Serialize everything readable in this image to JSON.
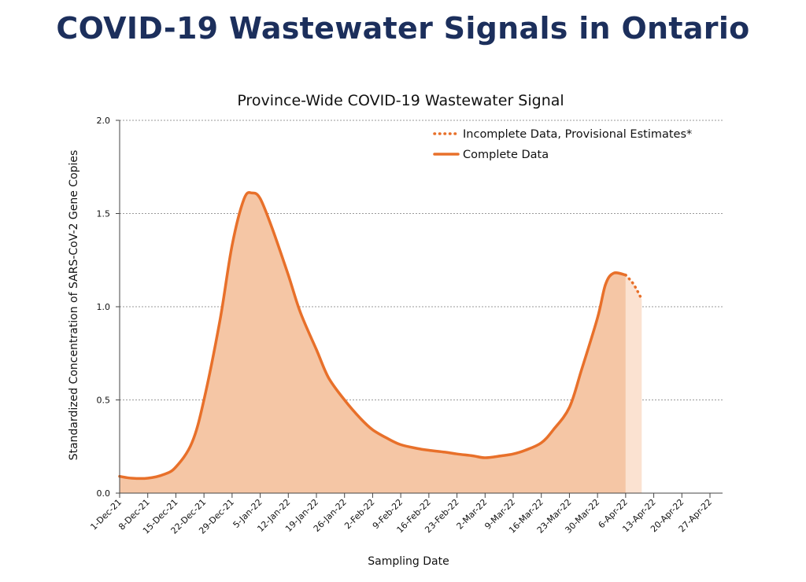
{
  "page_title": "COVID-19 Wastewater Signals in Ontario",
  "chart_data": {
    "type": "area",
    "title": "Province-Wide COVID-19 Wastewater Signal",
    "xlabel": "Sampling Date",
    "ylabel": "Standardized Concentration of SARS-CoV-2 Gene Copies",
    "ylim": [
      0,
      2.0
    ],
    "yticks": [
      "0.0",
      "0.5",
      "1.0",
      "1.5",
      "2.0"
    ],
    "xticks": [
      "1-Dec-21",
      "8-Dec-21",
      "15-Dec-21",
      "22-Dec-21",
      "29-Dec-21",
      "5-Jan-22",
      "12-Jan-22",
      "19-Jan-22",
      "26-Jan-22",
      "2-Feb-22",
      "9-Feb-22",
      "16-Feb-22",
      "23-Feb-22",
      "2-Mar-22",
      "9-Mar-22",
      "16-Mar-22",
      "23-Mar-22",
      "30-Mar-22",
      "6-Apr-22",
      "13-Apr-22",
      "20-Apr-22",
      "27-Apr-22"
    ],
    "grid": true,
    "legend_position": "top-right",
    "series": [
      {
        "name": "Complete Data",
        "style": "solid",
        "color": "#e8702a",
        "fill": "#f5c6a5",
        "x": [
          "1-Dec-21",
          "4-Dec-21",
          "8-Dec-21",
          "12-Dec-21",
          "15-Dec-21",
          "19-Dec-21",
          "22-Dec-21",
          "26-Dec-21",
          "29-Dec-21",
          "1-Jan-22",
          "3-Jan-22",
          "5-Jan-22",
          "8-Jan-22",
          "12-Jan-22",
          "15-Jan-22",
          "19-Jan-22",
          "22-Jan-22",
          "26-Jan-22",
          "30-Jan-22",
          "2-Feb-22",
          "6-Feb-22",
          "9-Feb-22",
          "13-Feb-22",
          "16-Feb-22",
          "20-Feb-22",
          "23-Feb-22",
          "27-Feb-22",
          "2-Mar-22",
          "6-Mar-22",
          "9-Mar-22",
          "12-Mar-22",
          "16-Mar-22",
          "19-Mar-22",
          "23-Mar-22",
          "26-Mar-22",
          "30-Mar-22",
          "1-Apr-22",
          "3-Apr-22",
          "6-Apr-22"
        ],
        "y": [
          0.09,
          0.08,
          0.08,
          0.1,
          0.14,
          0.27,
          0.5,
          0.93,
          1.33,
          1.58,
          1.61,
          1.58,
          1.42,
          1.17,
          0.97,
          0.77,
          0.62,
          0.5,
          0.4,
          0.34,
          0.29,
          0.26,
          0.24,
          0.23,
          0.22,
          0.21,
          0.2,
          0.19,
          0.2,
          0.21,
          0.23,
          0.27,
          0.34,
          0.46,
          0.66,
          0.94,
          1.12,
          1.18,
          1.17
        ]
      },
      {
        "name": "Incomplete Data, Provisional Estimates*",
        "style": "dotted",
        "color": "#e8702a",
        "fill": "#fbe2d1",
        "x": [
          "6-Apr-22",
          "8-Apr-22",
          "10-Apr-22"
        ],
        "y": [
          1.17,
          1.12,
          1.04
        ]
      }
    ]
  }
}
